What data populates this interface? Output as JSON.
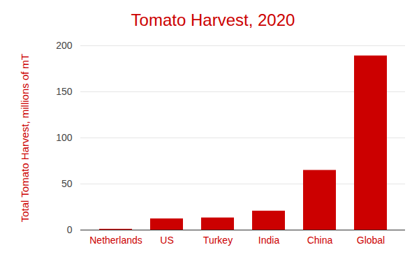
{
  "chart_data": {
    "type": "bar",
    "title": "Tomato Harvest, 2020",
    "y_label": "Total Tomato Harvest, millions of mT",
    "categories": [
      "Netherlands",
      "US",
      "Turkey",
      "India",
      "China",
      "Global"
    ],
    "values": [
      0.9,
      12.2,
      13.2,
      20.6,
      64.8,
      189
    ],
    "color": "#cc0000",
    "ylim": [
      0,
      200
    ],
    "yticks": [
      0,
      50,
      100,
      150,
      200
    ],
    "grid": true
  }
}
